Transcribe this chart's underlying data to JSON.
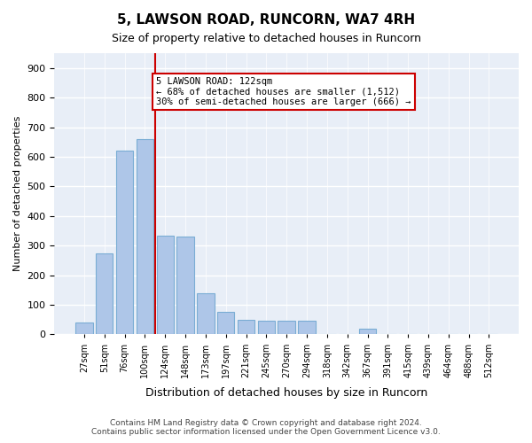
{
  "title": "5, LAWSON ROAD, RUNCORN, WA7 4RH",
  "subtitle": "Size of property relative to detached houses in Runcorn",
  "xlabel": "Distribution of detached houses by size in Runcorn",
  "ylabel": "Number of detached properties",
  "bar_color": "#aec6e8",
  "bar_edge_color": "#7aadd4",
  "background_color": "#e8eef7",
  "grid_color": "#ffffff",
  "bins": [
    "27sqm",
    "51sqm",
    "76sqm",
    "100sqm",
    "124sqm",
    "148sqm",
    "173sqm",
    "197sqm",
    "221sqm",
    "245sqm",
    "270sqm",
    "294sqm",
    "318sqm",
    "342sqm",
    "367sqm",
    "391sqm",
    "415sqm",
    "439sqm",
    "464sqm",
    "488sqm",
    "512sqm"
  ],
  "values": [
    40,
    275,
    620,
    660,
    335,
    330,
    140,
    75,
    50,
    45,
    45,
    45,
    0,
    0,
    20,
    0,
    0,
    0,
    0,
    0,
    0
  ],
  "property_line_x": 3.5,
  "property_line_color": "#cc0000",
  "annotation_text": "5 LAWSON ROAD: 122sqm\n← 68% of detached houses are smaller (1,512)\n30% of semi-detached houses are larger (666) →",
  "annotation_box_color": "#cc0000",
  "ylim": [
    0,
    950
  ],
  "yticks": [
    0,
    100,
    200,
    300,
    400,
    500,
    600,
    700,
    800,
    900
  ],
  "footnote1": "Contains HM Land Registry data © Crown copyright and database right 2024.",
  "footnote2": "Contains public sector information licensed under the Open Government Licence v3.0."
}
